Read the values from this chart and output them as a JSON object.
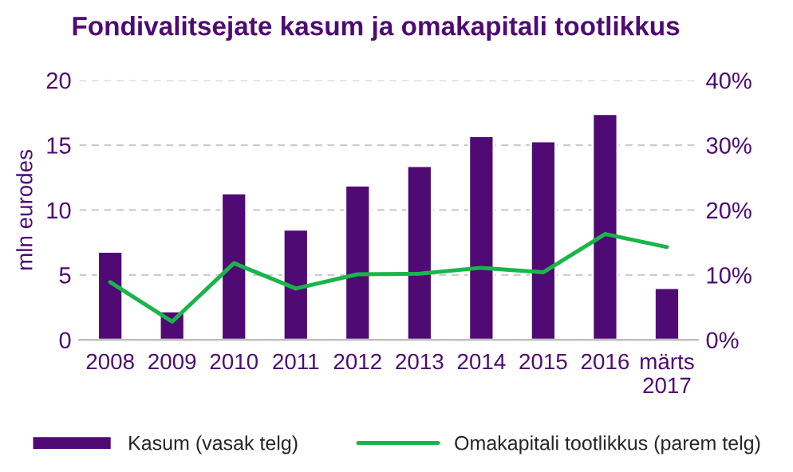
{
  "chart_data": {
    "type": "bar",
    "title": "Fondivalitsejate kasum ja omakapitali tootlikkus",
    "ylabel": "mln eurodes",
    "categories": [
      "2008",
      "2009",
      "2010",
      "2011",
      "2012",
      "2013",
      "2014",
      "2015",
      "2016",
      "märts\n2017"
    ],
    "series": [
      {
        "name": "Kasum (vasak telg)",
        "color": "#4f0a74",
        "values": [
          6.8,
          2.2,
          11.3,
          8.5,
          11.9,
          13.4,
          15.7,
          15.3,
          17.4,
          4.0
        ]
      },
      {
        "name": "Omakapitali tootlikkus (parem telg)",
        "type": "line",
        "axis": "y2",
        "color": "#1ab54a",
        "values": [
          8.9,
          2.8,
          11.8,
          7.9,
          10.1,
          10.2,
          11.1,
          10.4,
          16.3,
          14.3
        ]
      }
    ],
    "ylim": [
      0,
      20
    ],
    "yticks": [
      0,
      5,
      10,
      15,
      20
    ],
    "y2lim": [
      0,
      40
    ],
    "y2ticks": [
      {
        "value": 0,
        "label": "0%"
      },
      {
        "value": 10,
        "label": "10%"
      },
      {
        "value": 20,
        "label": "20%"
      },
      {
        "value": 30,
        "label": "30%"
      },
      {
        "value": 40,
        "label": "40%"
      }
    ],
    "grid": "y",
    "legend": "bottom",
    "marker": "none",
    "line_style": "solid"
  }
}
